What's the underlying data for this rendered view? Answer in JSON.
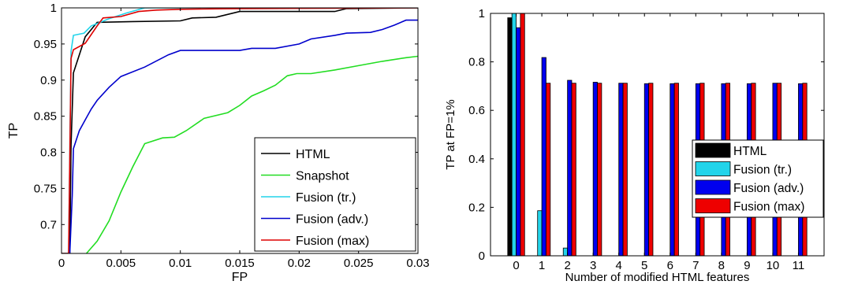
{
  "chart_data": [
    {
      "type": "line",
      "xlabel": "FP",
      "ylabel": "TP",
      "xlim": [
        0,
        0.03
      ],
      "ylim": [
        0.66,
        1.0
      ],
      "grid": false,
      "legend_position": "bottom-right",
      "x_ticks": [
        {
          "value": 0,
          "label": "0"
        },
        {
          "value": 0.005,
          "label": "0.005"
        },
        {
          "value": 0.01,
          "label": "0.01"
        },
        {
          "value": 0.015,
          "label": "0.015"
        },
        {
          "value": 0.02,
          "label": "0.02"
        },
        {
          "value": 0.025,
          "label": "0.025"
        },
        {
          "value": 0.03,
          "label": "0.03"
        }
      ],
      "y_ticks": [
        {
          "value": 0.7,
          "label": "0.7"
        },
        {
          "value": 0.75,
          "label": "0.75"
        },
        {
          "value": 0.8,
          "label": "0.8"
        },
        {
          "value": 0.85,
          "label": "0.85"
        },
        {
          "value": 0.9,
          "label": "0.9"
        },
        {
          "value": 0.95,
          "label": "0.95"
        },
        {
          "value": 1.0,
          "label": "1"
        }
      ],
      "series": [
        {
          "name": "HTML",
          "color": "#000000",
          "points": [
            [
              0,
              0.66
            ],
            [
              0.0007,
              0.66
            ],
            [
              0.0008,
              0.81
            ],
            [
              0.001,
              0.91
            ],
            [
              0.002,
              0.96
            ],
            [
              0.003,
              0.98
            ],
            [
              0.006,
              0.981
            ],
            [
              0.01,
              0.982
            ],
            [
              0.011,
              0.986
            ],
            [
              0.013,
              0.987
            ],
            [
              0.015,
              0.995
            ],
            [
              0.023,
              0.995
            ],
            [
              0.024,
              0.999
            ],
            [
              0.03,
              1.0
            ]
          ]
        },
        {
          "name": "Snapshot",
          "color": "#22dd22",
          "points": [
            [
              0.0021,
              0.66
            ],
            [
              0.003,
              0.677
            ],
            [
              0.004,
              0.705
            ],
            [
              0.005,
              0.745
            ],
            [
              0.006,
              0.78
            ],
            [
              0.007,
              0.812
            ],
            [
              0.0085,
              0.82
            ],
            [
              0.0095,
              0.821
            ],
            [
              0.0105,
              0.83
            ],
            [
              0.012,
              0.847
            ],
            [
              0.014,
              0.855
            ],
            [
              0.015,
              0.865
            ],
            [
              0.016,
              0.878
            ],
            [
              0.017,
              0.885
            ],
            [
              0.018,
              0.893
            ],
            [
              0.019,
              0.906
            ],
            [
              0.0198,
              0.909
            ],
            [
              0.021,
              0.909
            ],
            [
              0.023,
              0.914
            ],
            [
              0.025,
              0.92
            ],
            [
              0.027,
              0.926
            ],
            [
              0.029,
              0.931
            ],
            [
              0.03,
              0.933
            ]
          ]
        },
        {
          "name": "Fusion (tr.)",
          "color": "#22d4ea",
          "points": [
            [
              0,
              0.66
            ],
            [
              0.0006,
              0.66
            ],
            [
              0.0008,
              0.94
            ],
            [
              0.001,
              0.962
            ],
            [
              0.0019,
              0.965
            ],
            [
              0.0025,
              0.975
            ],
            [
              0.004,
              0.985
            ],
            [
              0.0055,
              0.993
            ],
            [
              0.007,
              1.0
            ],
            [
              0.03,
              1.0
            ]
          ]
        },
        {
          "name": "Fusion (adv.)",
          "color": "#0000cc",
          "points": [
            [
              0.0007,
              0.66
            ],
            [
              0.0009,
              0.74
            ],
            [
              0.001,
              0.805
            ],
            [
              0.0015,
              0.83
            ],
            [
              0.002,
              0.845
            ],
            [
              0.0025,
              0.86
            ],
            [
              0.003,
              0.872
            ],
            [
              0.004,
              0.89
            ],
            [
              0.005,
              0.905
            ],
            [
              0.007,
              0.918
            ],
            [
              0.009,
              0.935
            ],
            [
              0.01,
              0.941
            ],
            [
              0.015,
              0.941
            ],
            [
              0.016,
              0.944
            ],
            [
              0.018,
              0.944
            ],
            [
              0.02,
              0.95
            ],
            [
              0.021,
              0.957
            ],
            [
              0.023,
              0.962
            ],
            [
              0.024,
              0.965
            ],
            [
              0.026,
              0.966
            ],
            [
              0.027,
              0.97
            ],
            [
              0.028,
              0.976
            ],
            [
              0.029,
              0.983
            ],
            [
              0.03,
              0.983
            ]
          ]
        },
        {
          "name": "Fusion (max)",
          "color": "#dd0000",
          "points": [
            [
              0,
              0.66
            ],
            [
              0.0006,
              0.66
            ],
            [
              0.0008,
              0.93
            ],
            [
              0.001,
              0.942
            ],
            [
              0.002,
              0.951
            ],
            [
              0.003,
              0.975
            ],
            [
              0.0035,
              0.986
            ],
            [
              0.005,
              0.988
            ],
            [
              0.0065,
              0.995
            ],
            [
              0.008,
              0.997
            ],
            [
              0.01,
              0.998
            ],
            [
              0.015,
              0.999
            ],
            [
              0.03,
              1.0
            ]
          ]
        }
      ]
    },
    {
      "type": "bar",
      "xlabel": "Number of modified HTML features",
      "ylabel": "TP at FP=1%",
      "ylim": [
        0,
        1
      ],
      "grid": false,
      "legend_position": "center-right",
      "categories": [
        "0",
        "1",
        "2",
        "3",
        "4",
        "5",
        "6",
        "7",
        "8",
        "9",
        "10",
        "11"
      ],
      "y_ticks": [
        {
          "value": 0,
          "label": "0"
        },
        {
          "value": 0.2,
          "label": "0.2"
        },
        {
          "value": 0.4,
          "label": "0.4"
        },
        {
          "value": 0.6,
          "label": "0.6"
        },
        {
          "value": 0.8,
          "label": "0.8"
        },
        {
          "value": 1.0,
          "label": "1"
        }
      ],
      "series": [
        {
          "name": "HTML",
          "color": "#000000",
          "values": [
            0.982,
            0,
            0,
            0,
            0,
            0,
            0,
            0,
            0,
            0,
            0,
            0
          ]
        },
        {
          "name": "Fusion (tr.)",
          "color": "#22d4ea",
          "values": [
            1.0,
            0.186,
            0.032,
            0,
            0,
            0,
            0,
            0,
            0,
            0,
            0,
            0
          ]
        },
        {
          "name": "Fusion (adv.)",
          "color": "#0000ee",
          "values": [
            0.941,
            0.818,
            0.724,
            0.716,
            0.712,
            0.71,
            0.71,
            0.71,
            0.71,
            0.71,
            0.712,
            0.71
          ]
        },
        {
          "name": "Fusion (max)",
          "color": "#ee0000",
          "values": [
            1.0,
            0.712,
            0.712,
            0.712,
            0.712,
            0.712,
            0.712,
            0.712,
            0.712,
            0.712,
            0.712,
            0.712
          ]
        }
      ]
    }
  ]
}
